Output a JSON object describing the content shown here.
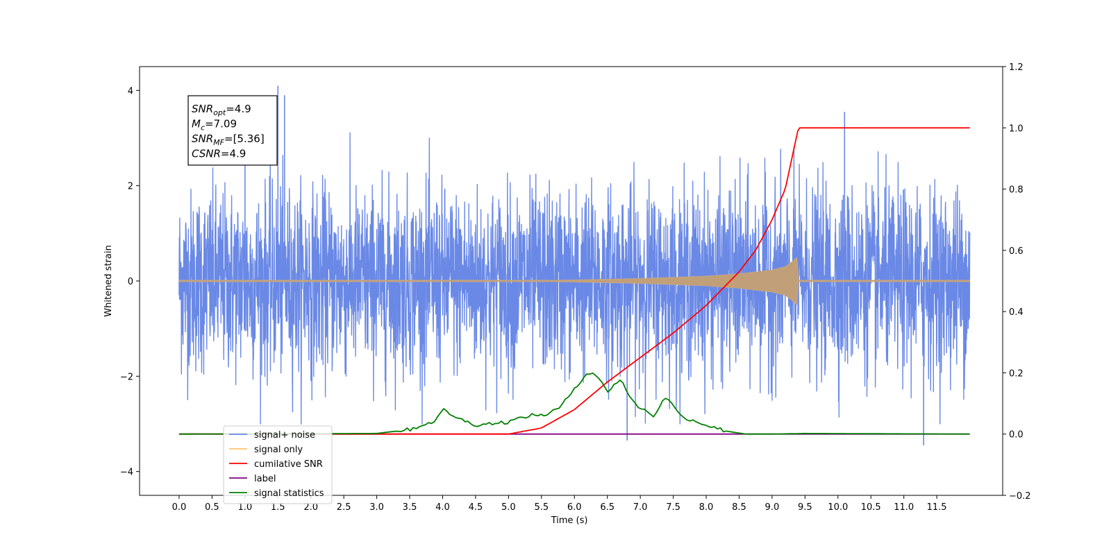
{
  "chart_data": {
    "type": "line",
    "xlabel": "Time (s)",
    "ylabel": "Whitened strain",
    "ylabel_right": "",
    "xlim": [
      -0.6,
      12.5
    ],
    "ylim": [
      -4.5,
      4.5
    ],
    "ylim_right": [
      -0.2,
      1.2
    ],
    "x_ticks": [
      "0.0",
      "0.5",
      "1.0",
      "1.5",
      "2.0",
      "2.5",
      "3.0",
      "3.5",
      "4.0",
      "4.5",
      "5.0",
      "5.5",
      "6.0",
      "6.5",
      "7.0",
      "7.5",
      "8.0",
      "8.5",
      "9.0",
      "9.5",
      "10.0",
      "10.5",
      "11.0",
      "11.5"
    ],
    "y_ticks": [
      "4",
      "2",
      "0",
      "−2",
      "−4"
    ],
    "y_ticks_right": [
      "1.2",
      "1.0",
      "0.8",
      "0.6",
      "0.4",
      "0.2",
      "0.0",
      "−0.2"
    ],
    "grid": false,
    "legend_position": "lower-left",
    "series": [
      {
        "name": "signal+ noise",
        "axis": "left",
        "color": "#6a89e6",
        "description_x_range": [
          0.0,
          12.0
        ],
        "typical_envelope": [
          -2.0,
          2.2
        ],
        "peaks": [
          [
            1.5,
            4.1
          ],
          [
            1.6,
            3.9
          ],
          [
            10.1,
            3.55
          ],
          [
            1.0,
            3.6
          ],
          [
            11.3,
            -3.45
          ],
          [
            6.8,
            -3.35
          ]
        ]
      },
      {
        "name": "signal only",
        "axis": "left",
        "color": "#ffc36b",
        "envelope": {
          "x": [
            0.0,
            5.0,
            6.0,
            7.0,
            8.0,
            8.5,
            9.0,
            9.2,
            9.3,
            9.38,
            9.4,
            12.0
          ],
          "amp": [
            0.0,
            0.0,
            0.02,
            0.05,
            0.1,
            0.15,
            0.23,
            0.3,
            0.4,
            0.5,
            0.0,
            0.0
          ]
        }
      },
      {
        "name": "cumilative SNR",
        "axis": "right",
        "color": "#ff0000",
        "x": [
          0.0,
          5.0,
          5.5,
          6.0,
          6.5,
          7.0,
          7.5,
          8.0,
          8.5,
          8.75,
          9.0,
          9.2,
          9.3,
          9.4,
          12.0
        ],
        "y": [
          0.0,
          0.0,
          0.02,
          0.08,
          0.17,
          0.25,
          0.33,
          0.42,
          0.53,
          0.6,
          0.7,
          0.8,
          0.9,
          1.0,
          1.0
        ]
      },
      {
        "name": "label",
        "axis": "right",
        "color": "#800080",
        "x": [
          0.0,
          12.0
        ],
        "y": [
          0.0,
          0.0
        ]
      },
      {
        "name": "signal statistics",
        "axis": "right",
        "color": "#008000",
        "x": [
          0.0,
          3.0,
          3.5,
          3.9,
          4.0,
          4.3,
          4.5,
          5.0,
          5.3,
          5.6,
          5.8,
          6.0,
          6.2,
          6.3,
          6.5,
          6.7,
          6.9,
          7.2,
          7.4,
          7.6,
          8.0,
          8.3,
          8.6,
          9.0,
          9.5,
          12.0
        ],
        "y": [
          0.0,
          0.002,
          0.015,
          0.045,
          0.08,
          0.045,
          0.03,
          0.04,
          0.06,
          0.065,
          0.09,
          0.15,
          0.2,
          0.2,
          0.14,
          0.18,
          0.1,
          0.06,
          0.125,
          0.06,
          0.03,
          0.01,
          0.0,
          0.0,
          0.002,
          0.0
        ]
      }
    ],
    "annotation_box": {
      "lines": [
        {
          "main": "SNR",
          "sub": "opt",
          "rest": "=4.9"
        },
        {
          "main": "M",
          "sub": "c",
          "rest": "=7.09"
        },
        {
          "main": "SNR",
          "sub": "MF",
          "rest": "=[5.36]"
        },
        {
          "main": "CSNR",
          "sub": "",
          "rest": "=4.9"
        }
      ]
    },
    "legend_entries": [
      "signal+ noise",
      "signal only",
      "cumilative SNR",
      "label",
      "signal statistics"
    ]
  }
}
